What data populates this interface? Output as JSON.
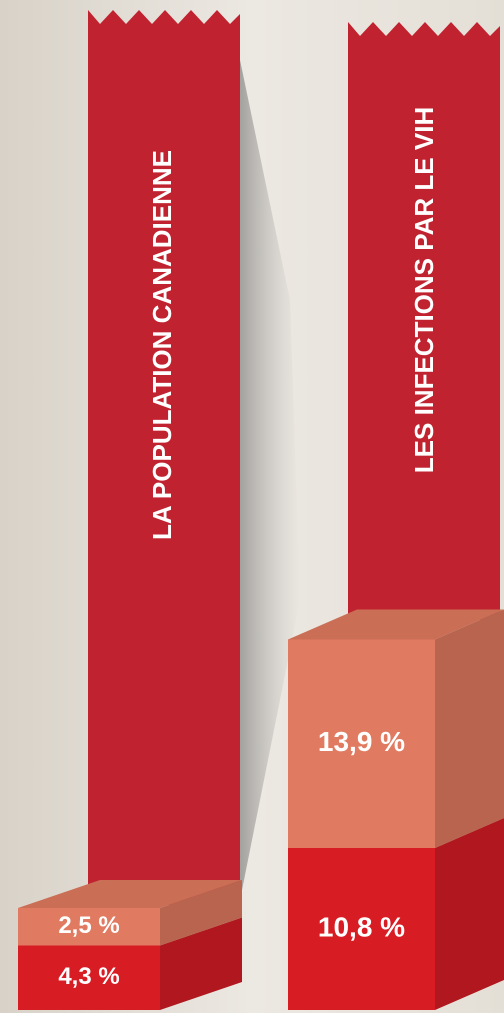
{
  "chart_data": {
    "type": "bar",
    "stacked": true,
    "categories": [
      "LA POPULATION CANADIENNE",
      "LES INFECTIONS PAR LE VIH"
    ],
    "series": [
      {
        "color": "#d71c24",
        "values": [
          4.3,
          10.8
        ],
        "value_labels": [
          "4,3 %",
          "10,8 %"
        ]
      },
      {
        "color": "#e07a60",
        "values": [
          2.5,
          13.9
        ],
        "value_labels": [
          "2,5 %",
          "13,9 %"
        ]
      }
    ]
  }
}
